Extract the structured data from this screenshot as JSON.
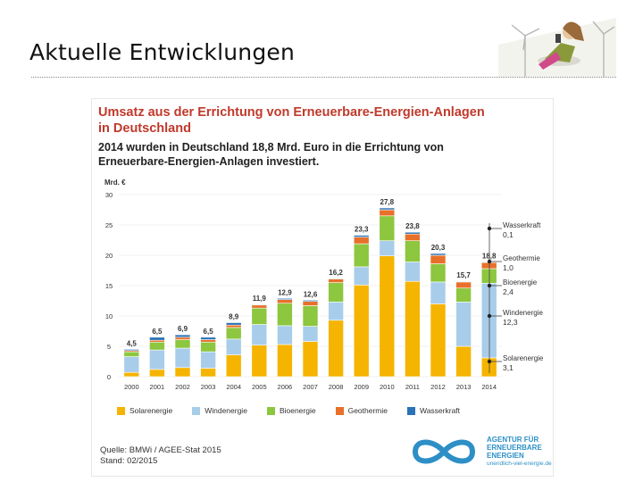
{
  "slide": {
    "title": "Aktuelle Entwicklungen"
  },
  "panel": {
    "title_line1": "Umsatz aus der Errichtung von Erneuerbare-Energien-Anlagen",
    "title_line2": "in Deutschland",
    "subtitle_line1": "2014 wurden in Deutschland 18,8 Mrd. Euro in die Errichtung von",
    "subtitle_line2": "Erneuerbare-Energien-Anlagen investiert.",
    "source_line1": "Quelle: BMWi / AGEE-Stat 2015",
    "source_line2": "Stand: 02/2015"
  },
  "agency": {
    "line1": "AGENTUR FÜR",
    "line2": "ERNEUERBARE",
    "line3": "ENERGIEN",
    "url": "unendlich-viel-energie.de"
  },
  "colors": {
    "solar": "#f5b400",
    "wind": "#a8cdea",
    "bio": "#8dc63f",
    "geo": "#e8702a",
    "water": "#2b72b8",
    "title": "#c0392b"
  },
  "chart_data": {
    "type": "bar",
    "stacked": true,
    "ylabel": "Mrd. €",
    "ylim": [
      0,
      30
    ],
    "yticks": [
      0,
      5,
      10,
      15,
      20,
      25,
      30
    ],
    "categories": [
      "2000",
      "2001",
      "2002",
      "2003",
      "2004",
      "2005",
      "2006",
      "2007",
      "2008",
      "2009",
      "2010",
      "2011",
      "2012",
      "2013",
      "2014"
    ],
    "totals": [
      "4,5",
      "6,5",
      "6,9",
      "6,5",
      "8,9",
      "11,9",
      "12,9",
      "12,6",
      "16,2",
      "23,3",
      "27,8",
      "23,8",
      "20,3",
      "15,7",
      "18,8"
    ],
    "series": [
      {
        "key": "solar",
        "name": "Solarenergie",
        "values": [
          0.7,
          1.2,
          1.5,
          1.4,
          3.6,
          5.2,
          5.3,
          5.8,
          9.3,
          15.1,
          19.9,
          15.7,
          12.0,
          5.0,
          3.1
        ]
      },
      {
        "key": "wind",
        "name": "Windenergie",
        "values": [
          2.6,
          3.2,
          3.2,
          2.7,
          2.6,
          3.4,
          3.1,
          2.5,
          3.0,
          3.0,
          2.5,
          3.2,
          3.6,
          7.3,
          12.3
        ]
      },
      {
        "key": "bio",
        "name": "Bioenergie",
        "values": [
          0.8,
          1.3,
          1.4,
          1.6,
          1.9,
          2.7,
          3.7,
          3.4,
          3.2,
          3.8,
          4.1,
          3.5,
          3.0,
          2.3,
          2.4
        ]
      },
      {
        "key": "geo",
        "name": "Geothermie",
        "values": [
          0.2,
          0.3,
          0.4,
          0.4,
          0.4,
          0.5,
          0.6,
          0.7,
          0.6,
          1.1,
          1.0,
          1.1,
          1.4,
          1.0,
          1.0
        ]
      },
      {
        "key": "water",
        "name": "Wasserkraft",
        "values": [
          0.2,
          0.5,
          0.4,
          0.4,
          0.4,
          0.1,
          0.2,
          0.2,
          0.1,
          0.3,
          0.3,
          0.3,
          0.3,
          0.1,
          0.1
        ]
      }
    ],
    "annotations_2014": [
      {
        "key": "water",
        "label": "Wasserkraft",
        "value": "0,1"
      },
      {
        "key": "geo",
        "label": "Geothermie",
        "value": "1,0"
      },
      {
        "key": "bio",
        "label": "Bioenergie",
        "value": "2,4"
      },
      {
        "key": "wind",
        "label": "Windenergie",
        "value": "12,3"
      },
      {
        "key": "solar",
        "label": "Solarenergie",
        "value": "3,1"
      }
    ]
  }
}
